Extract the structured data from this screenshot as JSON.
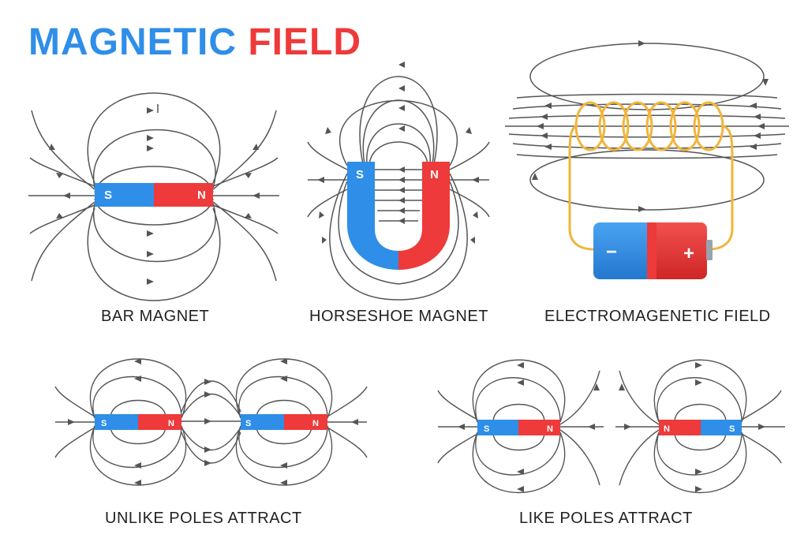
{
  "title": {
    "word1": "MAGNETIC",
    "word2": "FIELD"
  },
  "colors": {
    "blue": "#2f8ee8",
    "red": "#ee3a3a",
    "wire": "#f2b43a",
    "line": "#555555",
    "text": "#222222"
  },
  "captions": {
    "bar_magnet": "BAR MAGNET",
    "horseshoe_magnet": "HORSESHOE MAGNET",
    "electromagnetic_field": "ELECTROMAGENETIC FIELD",
    "unlike_poles": "UNLIKE POLES ATTRACT",
    "like_poles": "LIKE POLES ATTRACT"
  },
  "labels": {
    "south": "S",
    "north": "N",
    "minus": "−",
    "plus": "+"
  }
}
